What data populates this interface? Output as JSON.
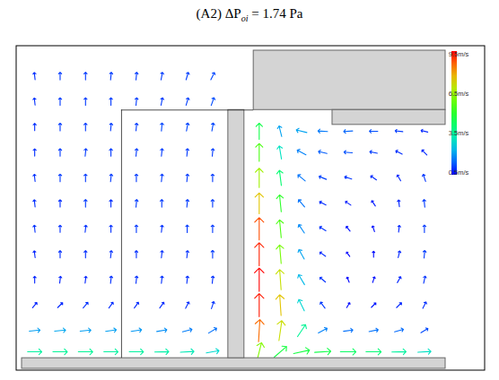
{
  "chart_data": {
    "type": "vector_field",
    "title": [
      {
        "text": "(A2) ΔP"
      },
      {
        "text": "oi",
        "italic": true,
        "sub": true
      },
      {
        "text": " = 1.74 Pa"
      }
    ],
    "tick_labels": false,
    "xlim": [
      0,
      100
    ],
    "ylim": [
      0,
      75
    ],
    "color_bar": {
      "range": [
        0.5,
        9.5
      ],
      "ticks": [
        {
          "value": 9.5,
          "label": "9.5m/s"
        },
        {
          "value": 6.5,
          "label": "6.5m/s"
        },
        {
          "value": 3.5,
          "label": "3.5m/s"
        },
        {
          "value": 0.5,
          "label": "0.5m/s"
        }
      ]
    },
    "vectors": [
      {
        "x": 3,
        "y": 4,
        "u": 3.5,
        "v": 0
      },
      {
        "x": 9,
        "y": 4,
        "u": 3.6,
        "v": 0
      },
      {
        "x": 15,
        "y": 4,
        "u": 3.6,
        "v": 0
      },
      {
        "x": 21,
        "y": 4,
        "u": 3.5,
        "v": 0
      },
      {
        "x": 27,
        "y": 4,
        "u": 3.5,
        "v": 0
      },
      {
        "x": 33,
        "y": 4,
        "u": 3.4,
        "v": 0.1
      },
      {
        "x": 39,
        "y": 4,
        "u": 3.2,
        "v": 0.2
      },
      {
        "x": 45,
        "y": 4,
        "u": 2.8,
        "v": 0.5
      },
      {
        "x": 3,
        "y": 9,
        "u": 2,
        "v": 0.2
      },
      {
        "x": 9,
        "y": 9,
        "u": 2.1,
        "v": 0.2
      },
      {
        "x": 15,
        "y": 9,
        "u": 2,
        "v": 0.2
      },
      {
        "x": 21,
        "y": 9,
        "u": 2,
        "v": 0.3
      },
      {
        "x": 27,
        "y": 9,
        "u": 1.9,
        "v": 0.3
      },
      {
        "x": 33,
        "y": 9,
        "u": 1.8,
        "v": 0.3
      },
      {
        "x": 39,
        "y": 9,
        "u": 1.6,
        "v": 0.4
      },
      {
        "x": 45,
        "y": 9,
        "u": 1.3,
        "v": 0.8
      },
      {
        "x": 3,
        "y": 15,
        "u": 0.5,
        "v": 0.6
      },
      {
        "x": 9,
        "y": 15,
        "u": 0.6,
        "v": 0.6
      },
      {
        "x": 15,
        "y": 15,
        "u": 0.6,
        "v": 0.7
      },
      {
        "x": 21,
        "y": 15,
        "u": 0.5,
        "v": 0.7
      },
      {
        "x": 27,
        "y": 15,
        "u": 0.5,
        "v": 0.7
      },
      {
        "x": 33,
        "y": 15,
        "u": 0.5,
        "v": 0.7
      },
      {
        "x": 39,
        "y": 15,
        "u": 0.4,
        "v": 0.8
      },
      {
        "x": 45,
        "y": 15,
        "u": 0.3,
        "v": 0.9
      },
      {
        "x": 3,
        "y": 21,
        "u": 0,
        "v": 0.8
      },
      {
        "x": 9,
        "y": 21,
        "u": 0.1,
        "v": 0.8
      },
      {
        "x": 15,
        "y": 21,
        "u": 0.1,
        "v": 0.8
      },
      {
        "x": 21,
        "y": 21,
        "u": 0.1,
        "v": 0.9
      },
      {
        "x": 27,
        "y": 21,
        "u": 0.1,
        "v": 0.9
      },
      {
        "x": 33,
        "y": 21,
        "u": 0.1,
        "v": 0.9
      },
      {
        "x": 39,
        "y": 21,
        "u": 0.1,
        "v": 0.9
      },
      {
        "x": 45,
        "y": 21,
        "u": 0.1,
        "v": 0.9
      },
      {
        "x": 3,
        "y": 27,
        "u": -0.1,
        "v": 0.8
      },
      {
        "x": 9,
        "y": 27,
        "u": 0,
        "v": 0.9
      },
      {
        "x": 15,
        "y": 27,
        "u": 0,
        "v": 0.9
      },
      {
        "x": 21,
        "y": 27,
        "u": 0.1,
        "v": 0.9
      },
      {
        "x": 27,
        "y": 27,
        "u": 0,
        "v": 0.9
      },
      {
        "x": 33,
        "y": 27,
        "u": 0.1,
        "v": 0.9
      },
      {
        "x": 39,
        "y": 27,
        "u": 0.1,
        "v": 0.9
      },
      {
        "x": 45,
        "y": 27,
        "u": 0,
        "v": 1
      },
      {
        "x": 3,
        "y": 33,
        "u": -0.1,
        "v": 0.9
      },
      {
        "x": 9,
        "y": 33,
        "u": 0,
        "v": 0.9
      },
      {
        "x": 15,
        "y": 33,
        "u": 0.1,
        "v": 0.9
      },
      {
        "x": 21,
        "y": 33,
        "u": 0,
        "v": 0.9
      },
      {
        "x": 27,
        "y": 33,
        "u": 0,
        "v": 1
      },
      {
        "x": 33,
        "y": 33,
        "u": 0.1,
        "v": 0.9
      },
      {
        "x": 39,
        "y": 33,
        "u": 0,
        "v": 1
      },
      {
        "x": 45,
        "y": 33,
        "u": 0,
        "v": 1
      },
      {
        "x": 3,
        "y": 39,
        "u": -0.1,
        "v": 0.9
      },
      {
        "x": 9,
        "y": 39,
        "u": 0,
        "v": 0.9
      },
      {
        "x": 15,
        "y": 39,
        "u": 0,
        "v": 1
      },
      {
        "x": 21,
        "y": 39,
        "u": 0,
        "v": 0.9
      },
      {
        "x": 27,
        "y": 39,
        "u": 0.1,
        "v": 1
      },
      {
        "x": 33,
        "y": 39,
        "u": 0,
        "v": 1
      },
      {
        "x": 39,
        "y": 39,
        "u": 0.1,
        "v": 1
      },
      {
        "x": 45,
        "y": 39,
        "u": 0,
        "v": 1
      },
      {
        "x": 3,
        "y": 45,
        "u": -0.1,
        "v": 0.9
      },
      {
        "x": 9,
        "y": 45,
        "u": 0,
        "v": 1
      },
      {
        "x": 15,
        "y": 45,
        "u": 0,
        "v": 1
      },
      {
        "x": 21,
        "y": 45,
        "u": 0.1,
        "v": 1
      },
      {
        "x": 27,
        "y": 45,
        "u": 0,
        "v": 1
      },
      {
        "x": 33,
        "y": 45,
        "u": 0.1,
        "v": 1
      },
      {
        "x": 39,
        "y": 45,
        "u": 0.1,
        "v": 1
      },
      {
        "x": 45,
        "y": 45,
        "u": 0,
        "v": 1
      },
      {
        "x": 3,
        "y": 51,
        "u": 0,
        "v": 0.9
      },
      {
        "x": 9,
        "y": 51,
        "u": 0,
        "v": 1
      },
      {
        "x": 15,
        "y": 51,
        "u": 0.1,
        "v": 1
      },
      {
        "x": 21,
        "y": 51,
        "u": 0,
        "v": 1
      },
      {
        "x": 27,
        "y": 51,
        "u": 0.1,
        "v": 1
      },
      {
        "x": 33,
        "y": 51,
        "u": 0.1,
        "v": 1
      },
      {
        "x": 39,
        "y": 51,
        "u": 0.1,
        "v": 1
      },
      {
        "x": 45,
        "y": 51,
        "u": 0.1,
        "v": 1
      },
      {
        "x": 3,
        "y": 57,
        "u": 0,
        "v": 0.9
      },
      {
        "x": 9,
        "y": 57,
        "u": 0,
        "v": 1
      },
      {
        "x": 15,
        "y": 57,
        "u": 0,
        "v": 1
      },
      {
        "x": 21,
        "y": 57,
        "u": 0.1,
        "v": 1
      },
      {
        "x": 27,
        "y": 57,
        "u": 0.1,
        "v": 1
      },
      {
        "x": 33,
        "y": 57,
        "u": 0.1,
        "v": 1.1
      },
      {
        "x": 39,
        "y": 57,
        "u": 0.2,
        "v": 1.1
      },
      {
        "x": 45,
        "y": 57,
        "u": 0.2,
        "v": 1.1
      },
      {
        "x": 3,
        "y": 63,
        "u": -0.1,
        "v": 0.9
      },
      {
        "x": 9,
        "y": 63,
        "u": 0,
        "v": 1
      },
      {
        "x": 15,
        "y": 63,
        "u": 0,
        "v": 1
      },
      {
        "x": 21,
        "y": 63,
        "u": 0,
        "v": 1
      },
      {
        "x": 27,
        "y": 63,
        "u": 0.1,
        "v": 1
      },
      {
        "x": 33,
        "y": 63,
        "u": 0.2,
        "v": 1
      },
      {
        "x": 39,
        "y": 63,
        "u": 0.3,
        "v": 1
      },
      {
        "x": 45,
        "y": 63,
        "u": 0.4,
        "v": 1.1
      },
      {
        "x": 3,
        "y": 69,
        "u": -0.1,
        "v": 0.9
      },
      {
        "x": 9,
        "y": 69,
        "u": 0,
        "v": 1
      },
      {
        "x": 15,
        "y": 69,
        "u": 0,
        "v": 1
      },
      {
        "x": 21,
        "y": 69,
        "u": 0.1,
        "v": 1
      },
      {
        "x": 27,
        "y": 69,
        "u": 0.1,
        "v": 1
      },
      {
        "x": 33,
        "y": 69,
        "u": 0.2,
        "v": 1
      },
      {
        "x": 39,
        "y": 69,
        "u": 0.3,
        "v": 1
      },
      {
        "x": 45,
        "y": 69,
        "u": 0.5,
        "v": 1
      },
      {
        "x": 56,
        "y": 4,
        "u": 1.5,
        "v": 6
      },
      {
        "x": 56,
        "y": 9,
        "u": 0.5,
        "v": 8.5
      },
      {
        "x": 56,
        "y": 15,
        "u": 0,
        "v": 9.3
      },
      {
        "x": 56,
        "y": 21,
        "u": 0,
        "v": 9.5
      },
      {
        "x": 56,
        "y": 27,
        "u": 0,
        "v": 9.2
      },
      {
        "x": 56,
        "y": 33,
        "u": 0,
        "v": 8.8
      },
      {
        "x": 56,
        "y": 39,
        "u": 0,
        "v": 7.5
      },
      {
        "x": 56,
        "y": 45,
        "u": 0,
        "v": 6.5
      },
      {
        "x": 56,
        "y": 51,
        "u": 0,
        "v": 5.5
      },
      {
        "x": 56,
        "y": 56,
        "u": 0,
        "v": 4.5
      },
      {
        "x": 61,
        "y": 4,
        "u": 3.5,
        "v": 3
      },
      {
        "x": 61,
        "y": 9,
        "u": 1,
        "v": 7
      },
      {
        "x": 61,
        "y": 15,
        "u": -0.5,
        "v": 7.5
      },
      {
        "x": 61,
        "y": 21,
        "u": -0.5,
        "v": 7
      },
      {
        "x": 61,
        "y": 27,
        "u": -0.5,
        "v": 6
      },
      {
        "x": 61,
        "y": 33,
        "u": -0.5,
        "v": 5.5
      },
      {
        "x": 61,
        "y": 39,
        "u": -0.5,
        "v": 5
      },
      {
        "x": 61,
        "y": 45,
        "u": -0.5,
        "v": 4
      },
      {
        "x": 61,
        "y": 51,
        "u": -0.5,
        "v": 3
      },
      {
        "x": 61,
        "y": 56,
        "u": -0.5,
        "v": 2
      },
      {
        "x": 66,
        "y": 4,
        "u": 4.5,
        "v": 1
      },
      {
        "x": 66,
        "y": 9,
        "u": 2,
        "v": 3
      },
      {
        "x": 66,
        "y": 15,
        "u": -1.2,
        "v": 2.5
      },
      {
        "x": 66,
        "y": 21,
        "u": -1.2,
        "v": 2
      },
      {
        "x": 66,
        "y": 27,
        "u": -1,
        "v": 1.8
      },
      {
        "x": 66,
        "y": 33,
        "u": -1,
        "v": 1.5
      },
      {
        "x": 66,
        "y": 39,
        "u": -1,
        "v": 1.2
      },
      {
        "x": 66,
        "y": 45,
        "u": -1.2,
        "v": 1
      },
      {
        "x": 66,
        "y": 51,
        "u": -1.5,
        "v": 0.8
      },
      {
        "x": 66,
        "y": 56,
        "u": -2,
        "v": 0.5
      },
      {
        "x": 71,
        "y": 4,
        "u": 4.5,
        "v": 0.3
      },
      {
        "x": 71,
        "y": 9,
        "u": 1.5,
        "v": 0.8
      },
      {
        "x": 71,
        "y": 15,
        "u": -0.6,
        "v": 0.8
      },
      {
        "x": 71,
        "y": 21,
        "u": -0.7,
        "v": 0.6
      },
      {
        "x": 71,
        "y": 27,
        "u": -0.7,
        "v": 0.5
      },
      {
        "x": 71,
        "y": 33,
        "u": -0.8,
        "v": 0.5
      },
      {
        "x": 71,
        "y": 39,
        "u": -0.8,
        "v": 0.4
      },
      {
        "x": 71,
        "y": 45,
        "u": -1,
        "v": 0.4
      },
      {
        "x": 71,
        "y": 51,
        "u": -1.3,
        "v": 0.3
      },
      {
        "x": 71,
        "y": 56,
        "u": -1.6,
        "v": 0.1
      },
      {
        "x": 77,
        "y": 4,
        "u": 4.2,
        "v": 0
      },
      {
        "x": 77,
        "y": 9,
        "u": 1.5,
        "v": 0.2
      },
      {
        "x": 77,
        "y": 15,
        "u": 0.3,
        "v": 0.5
      },
      {
        "x": 77,
        "y": 21,
        "u": -0.2,
        "v": 0.5
      },
      {
        "x": 77,
        "y": 27,
        "u": -0.3,
        "v": 0.4
      },
      {
        "x": 77,
        "y": 33,
        "u": -0.4,
        "v": 0.5
      },
      {
        "x": 77,
        "y": 39,
        "u": -0.6,
        "v": 0.4
      },
      {
        "x": 77,
        "y": 45,
        "u": -0.9,
        "v": 0.3
      },
      {
        "x": 77,
        "y": 51,
        "u": -1.2,
        "v": 0.1
      },
      {
        "x": 77,
        "y": 56,
        "u": -1.4,
        "v": -0.1
      },
      {
        "x": 83,
        "y": 4,
        "u": 4,
        "v": 0
      },
      {
        "x": 83,
        "y": 9,
        "u": 1.5,
        "v": 0.3
      },
      {
        "x": 83,
        "y": 15,
        "u": 0.5,
        "v": 0.5
      },
      {
        "x": 83,
        "y": 21,
        "u": 0.2,
        "v": 0.6
      },
      {
        "x": 83,
        "y": 27,
        "u": 0,
        "v": 0.6
      },
      {
        "x": 83,
        "y": 33,
        "u": -0.2,
        "v": 0.6
      },
      {
        "x": 83,
        "y": 39,
        "u": -0.4,
        "v": 0.6
      },
      {
        "x": 83,
        "y": 45,
        "u": -0.7,
        "v": 0.5
      },
      {
        "x": 83,
        "y": 51,
        "u": -1,
        "v": 0.2
      },
      {
        "x": 83,
        "y": 56,
        "u": -1.2,
        "v": 0
      },
      {
        "x": 89,
        "y": 4,
        "u": 3.5,
        "v": 0.1
      },
      {
        "x": 89,
        "y": 9,
        "u": 1.4,
        "v": 0.4
      },
      {
        "x": 89,
        "y": 15,
        "u": 0.6,
        "v": 0.6
      },
      {
        "x": 89,
        "y": 21,
        "u": 0.4,
        "v": 0.7
      },
      {
        "x": 89,
        "y": 27,
        "u": 0.2,
        "v": 0.8
      },
      {
        "x": 89,
        "y": 33,
        "u": 0.1,
        "v": 0.8
      },
      {
        "x": 89,
        "y": 39,
        "u": -0.1,
        "v": 0.8
      },
      {
        "x": 89,
        "y": 45,
        "u": -0.4,
        "v": 0.7
      },
      {
        "x": 89,
        "y": 51,
        "u": -0.8,
        "v": 0.4
      },
      {
        "x": 89,
        "y": 56,
        "u": -1,
        "v": 0.1
      },
      {
        "x": 95,
        "y": 4,
        "u": 3,
        "v": 0.2
      },
      {
        "x": 95,
        "y": 9,
        "u": 1,
        "v": 0.6
      },
      {
        "x": 95,
        "y": 15,
        "u": 0.4,
        "v": 0.8
      },
      {
        "x": 95,
        "y": 21,
        "u": 0.2,
        "v": 0.9
      },
      {
        "x": 95,
        "y": 27,
        "u": 0.1,
        "v": 1
      },
      {
        "x": 95,
        "y": 33,
        "u": 0,
        "v": 1
      },
      {
        "x": 95,
        "y": 39,
        "u": -0.1,
        "v": 1
      },
      {
        "x": 95,
        "y": 45,
        "u": -0.3,
        "v": 0.9
      },
      {
        "x": 95,
        "y": 51,
        "u": -0.6,
        "v": 0.6
      },
      {
        "x": 95,
        "y": 56,
        "u": -0.8,
        "v": 0.2
      }
    ]
  }
}
